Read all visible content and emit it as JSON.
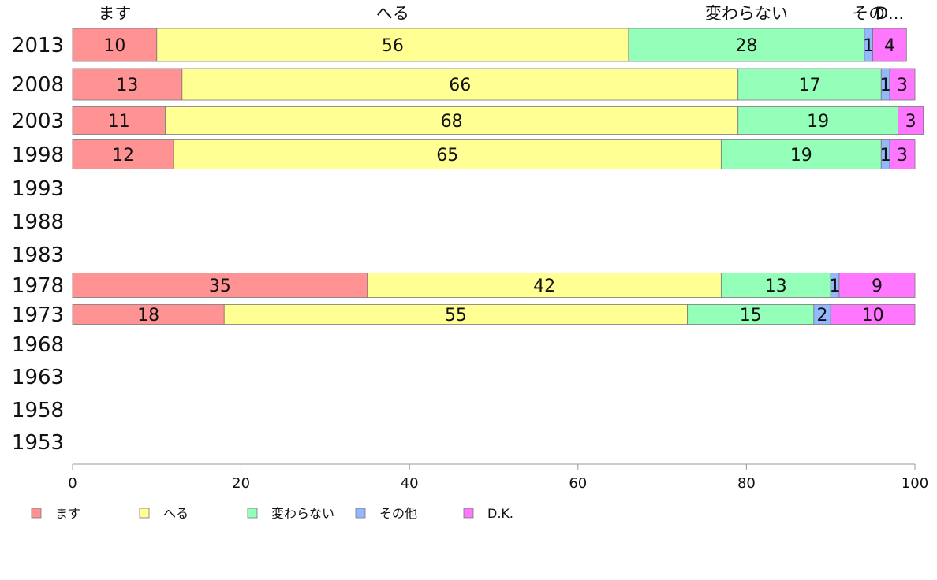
{
  "chart_data": {
    "type": "bar",
    "orientation": "horizontal",
    "stacked": true,
    "categories": [
      "2013",
      "2008",
      "2003",
      "1998",
      "1993",
      "1988",
      "1983",
      "1978",
      "1973",
      "1968",
      "1963",
      "1958",
      "1953"
    ],
    "series": [
      {
        "name": "ます",
        "color": "#ff9393",
        "values": [
          10,
          13,
          11,
          12,
          null,
          null,
          null,
          35,
          18,
          null,
          null,
          null,
          null
        ]
      },
      {
        "name": "へる",
        "color": "#ffff93",
        "values": [
          56,
          66,
          68,
          65,
          null,
          null,
          null,
          42,
          55,
          null,
          null,
          null,
          null
        ]
      },
      {
        "name": "変わらない",
        "color": "#93ffb8",
        "values": [
          28,
          17,
          19,
          19,
          null,
          null,
          null,
          13,
          15,
          null,
          null,
          null,
          null
        ]
      },
      {
        "name": "その他",
        "color": "#93b8ff",
        "values": [
          1,
          1,
          0,
          1,
          null,
          null,
          null,
          1,
          2,
          null,
          null,
          null,
          null
        ]
      },
      {
        "name": "D.K.",
        "color": "#ff77ff",
        "values": [
          4,
          3,
          3,
          3,
          null,
          null,
          null,
          9,
          10,
          null,
          null,
          null,
          null
        ]
      }
    ],
    "top_labels": [
      "ます",
      "へる",
      "変わらない",
      "その",
      "D..."
    ],
    "xlim": [
      0,
      100
    ],
    "xticks": [
      "0",
      "20",
      "40",
      "60",
      "80",
      "100"
    ],
    "grid": false,
    "legend_position": "bottom-left"
  }
}
